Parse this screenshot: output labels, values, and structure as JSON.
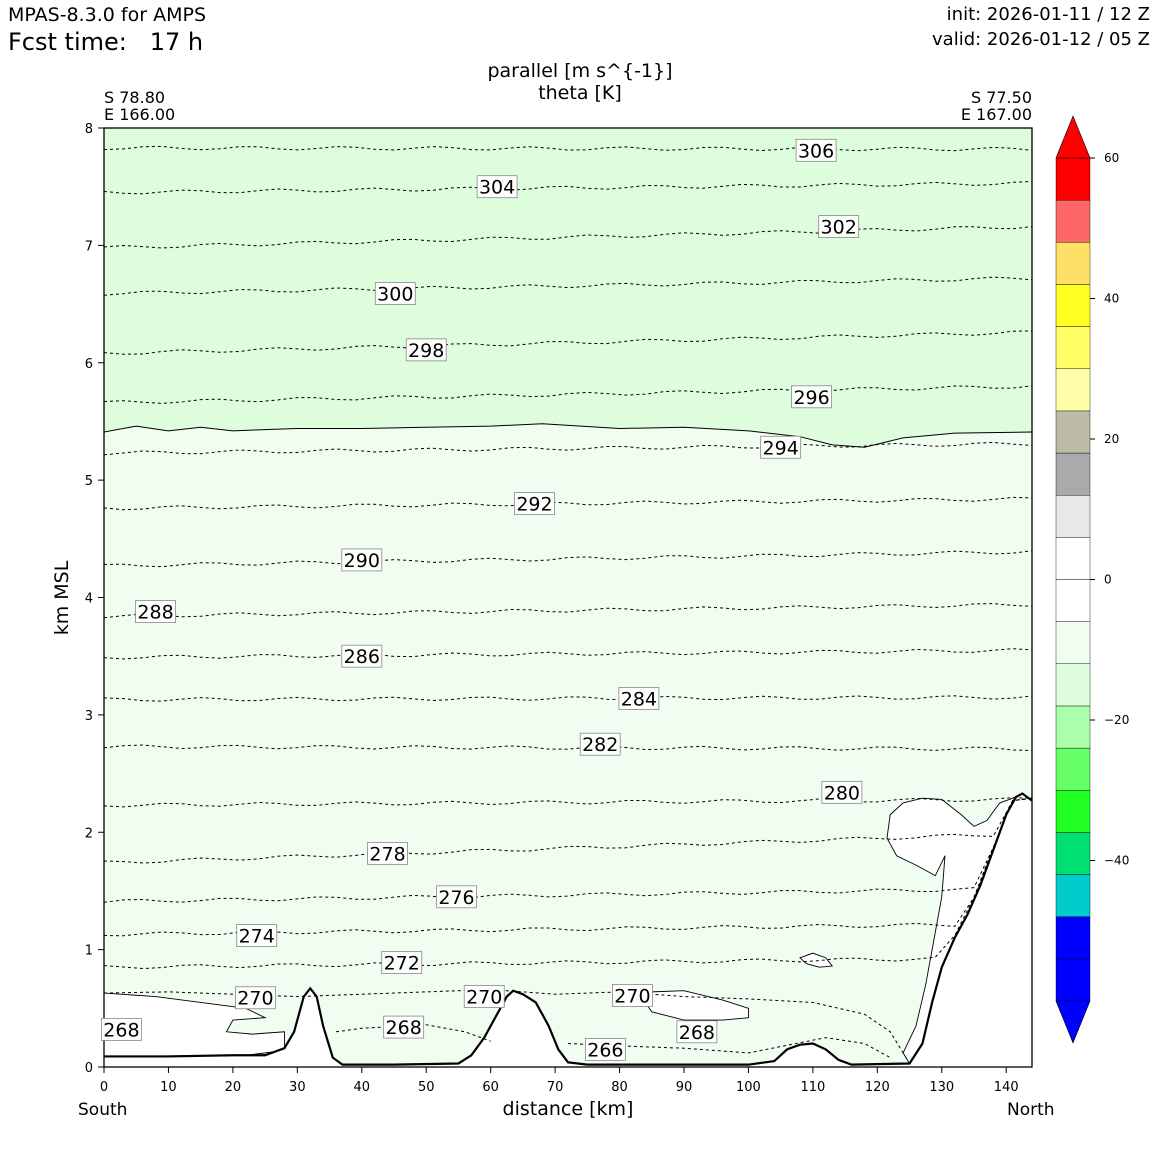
{
  "header": {
    "model": "MPAS-8.3.0 for AMPS",
    "fcst_label": "Fcst time:",
    "fcst_value": "17 h",
    "init": "init: 2026-01-11 / 12 Z",
    "valid": "valid: 2026-01-12 / 05 Z"
  },
  "cross_section": {
    "start_lat": "S 78.80",
    "start_lon": "E 166.00",
    "end_lat": "S 77.50",
    "end_lon": "E 167.00",
    "start_dir": "South",
    "end_dir": "North"
  },
  "chart_data": {
    "type": "contour_cross_section",
    "title_fill": "parallel [m s^{-1}]",
    "title_contour": "theta [K]",
    "xlabel": "distance [km]",
    "ylabel": "km MSL",
    "xlim": [
      0,
      144
    ],
    "ylim": [
      0,
      8
    ],
    "xticks": [
      0,
      10,
      20,
      30,
      40,
      50,
      60,
      70,
      80,
      90,
      100,
      110,
      120,
      130,
      140
    ],
    "yticks": [
      0,
      1,
      2,
      3,
      4,
      5,
      6,
      7,
      8
    ],
    "fill_colors": {
      "band_-10_to_-5": "#ddfddd",
      "band_-5_to_0": "#f1fdf1",
      "background_zero": "#ffffff"
    },
    "theta_levels": [
      266,
      268,
      270,
      272,
      274,
      276,
      278,
      280,
      282,
      284,
      286,
      288,
      290,
      292,
      294,
      296,
      298,
      300,
      302,
      304,
      306
    ],
    "theta_contour_heights_km": [
      {
        "theta": 280,
        "z0": 2.23,
        "z1": 2.28
      },
      {
        "theta": 282,
        "z0": 2.73,
        "z1": 2.71
      },
      {
        "theta": 284,
        "z0": 3.13,
        "z1": 3.15
      },
      {
        "theta": 286,
        "z0": 3.49,
        "z1": 3.55
      },
      {
        "theta": 288,
        "z0": 3.84,
        "z1": 3.94
      },
      {
        "theta": 290,
        "z0": 4.27,
        "z1": 4.39
      },
      {
        "theta": 292,
        "z0": 4.76,
        "z1": 4.84
      },
      {
        "theta": 294,
        "z0": 5.23,
        "z1": 5.31
      },
      {
        "theta": 296,
        "z0": 5.66,
        "z1": 5.8
      },
      {
        "theta": 298,
        "z0": 6.08,
        "z1": 6.26
      },
      {
        "theta": 300,
        "z0": 6.59,
        "z1": 6.72
      },
      {
        "theta": 302,
        "z0": 6.98,
        "z1": 7.16
      },
      {
        "theta": 304,
        "z0": 7.45,
        "z1": 7.53
      },
      {
        "theta": 306,
        "z0": 7.83,
        "z1": 7.82
      },
      {
        "theta": 278,
        "z0": 1.74,
        "z1": 1.99
      },
      {
        "theta": 276,
        "z0": 1.41,
        "z1": 1.52
      },
      {
        "theta": 274,
        "z0": 1.13,
        "z1": 1.22
      },
      {
        "theta": 272,
        "z0": 0.85,
        "z1": 0.93
      }
    ],
    "contour_labels": [
      {
        "text": "306",
        "x": 110.5,
        "z": 7.81
      },
      {
        "text": "304",
        "x": 61.0,
        "z": 7.5
      },
      {
        "text": "302",
        "x": 114.0,
        "z": 7.16
      },
      {
        "text": "300",
        "x": 45.2,
        "z": 6.59
      },
      {
        "text": "298",
        "x": 50.0,
        "z": 6.11
      },
      {
        "text": "296",
        "x": 109.8,
        "z": 5.71
      },
      {
        "text": "294",
        "x": 105.0,
        "z": 5.28
      },
      {
        "text": "292",
        "x": 66.8,
        "z": 4.8
      },
      {
        "text": "290",
        "x": 40.0,
        "z": 4.32
      },
      {
        "text": "288",
        "x": 8.0,
        "z": 3.88
      },
      {
        "text": "286",
        "x": 40.0,
        "z": 3.5
      },
      {
        "text": "284",
        "x": 83.0,
        "z": 3.14
      },
      {
        "text": "282",
        "x": 77.0,
        "z": 2.75
      },
      {
        "text": "280",
        "x": 114.5,
        "z": 2.34
      },
      {
        "text": "278",
        "x": 44.0,
        "z": 1.82
      },
      {
        "text": "276",
        "x": 54.7,
        "z": 1.45
      },
      {
        "text": "274",
        "x": 23.7,
        "z": 1.12
      },
      {
        "text": "272",
        "x": 46.2,
        "z": 0.89
      },
      {
        "text": "270",
        "x": 23.5,
        "z": 0.59
      },
      {
        "text": "270",
        "x": 59.0,
        "z": 0.6
      },
      {
        "text": "270",
        "x": 82.0,
        "z": 0.61
      },
      {
        "text": "268",
        "x": 2.7,
        "z": 0.32
      },
      {
        "text": "268",
        "x": 46.5,
        "z": 0.34
      },
      {
        "text": "268",
        "x": 92.0,
        "z": 0.3
      },
      {
        "text": "266",
        "x": 77.8,
        "z": 0.15
      }
    ],
    "terrain_km": [
      [
        0,
        0.09
      ],
      [
        10,
        0.09
      ],
      [
        20,
        0.1
      ],
      [
        25,
        0.1
      ],
      [
        28,
        0.16
      ],
      [
        29.5,
        0.3
      ],
      [
        31,
        0.6
      ],
      [
        32,
        0.67
      ],
      [
        33,
        0.6
      ],
      [
        34,
        0.35
      ],
      [
        35.5,
        0.08
      ],
      [
        37,
        0.02
      ],
      [
        45,
        0.02
      ],
      [
        55,
        0.03
      ],
      [
        57,
        0.1
      ],
      [
        59,
        0.25
      ],
      [
        61,
        0.45
      ],
      [
        62.5,
        0.6
      ],
      [
        63.5,
        0.65
      ],
      [
        65,
        0.62
      ],
      [
        67,
        0.55
      ],
      [
        69,
        0.35
      ],
      [
        70.5,
        0.15
      ],
      [
        72,
        0.04
      ],
      [
        75,
        0.02
      ],
      [
        100,
        0.02
      ],
      [
        104,
        0.05
      ],
      [
        106,
        0.15
      ],
      [
        108,
        0.19
      ],
      [
        110,
        0.2
      ],
      [
        112,
        0.15
      ],
      [
        114,
        0.06
      ],
      [
        116,
        0.02
      ],
      [
        125,
        0.03
      ],
      [
        127,
        0.2
      ],
      [
        128.5,
        0.55
      ],
      [
        130,
        0.85
      ],
      [
        132,
        1.1
      ],
      [
        134,
        1.3
      ],
      [
        136,
        1.55
      ],
      [
        138,
        1.85
      ],
      [
        140,
        2.15
      ],
      [
        141.5,
        2.3
      ],
      [
        142.5,
        2.33
      ],
      [
        144,
        2.27
      ]
    ],
    "zero_contour_top_km": [
      [
        0,
        5.41
      ],
      [
        5,
        5.46
      ],
      [
        10,
        5.42
      ],
      [
        15,
        5.45
      ],
      [
        20,
        5.42
      ],
      [
        30,
        5.44
      ],
      [
        40,
        5.44
      ],
      [
        50,
        5.45
      ],
      [
        60,
        5.46
      ],
      [
        68,
        5.48
      ],
      [
        80,
        5.44
      ],
      [
        90,
        5.45
      ],
      [
        100,
        5.42
      ],
      [
        108,
        5.37
      ],
      [
        113,
        5.3
      ],
      [
        118,
        5.28
      ],
      [
        124,
        5.36
      ],
      [
        132,
        5.4
      ],
      [
        144,
        5.41
      ]
    ]
  }
}
